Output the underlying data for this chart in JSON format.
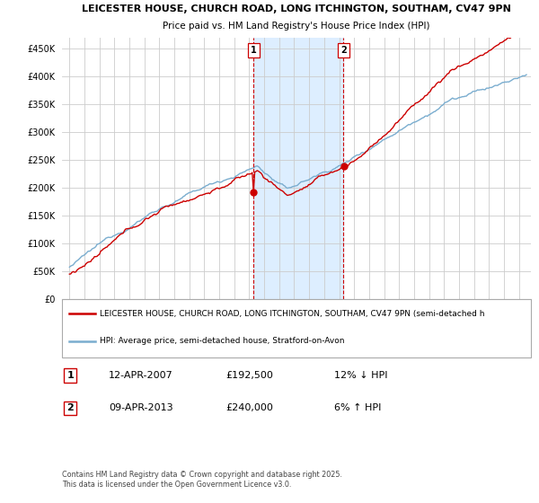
{
  "title1": "LEICESTER HOUSE, CHURCH ROAD, LONG ITCHINGTON, SOUTHAM, CV47 9PN",
  "title2": "Price paid vs. HM Land Registry's House Price Index (HPI)",
  "ylim": [
    0,
    470000
  ],
  "yticks": [
    0,
    50000,
    100000,
    150000,
    200000,
    250000,
    300000,
    350000,
    400000,
    450000
  ],
  "ytick_labels": [
    "£0",
    "£50K",
    "£100K",
    "£150K",
    "£200K",
    "£250K",
    "£300K",
    "£350K",
    "£400K",
    "£450K"
  ],
  "legend_line1": "LEICESTER HOUSE, CHURCH ROAD, LONG ITCHINGTON, SOUTHAM, CV47 9PN (semi-detached h",
  "legend_line2": "HPI: Average price, semi-detached house, Stratford-on-Avon",
  "sale1_label": "1",
  "sale1_date": "12-APR-2007",
  "sale1_price": "£192,500",
  "sale1_hpi": "12% ↓ HPI",
  "sale2_label": "2",
  "sale2_date": "09-APR-2013",
  "sale2_price": "£240,000",
  "sale2_hpi": "6% ↑ HPI",
  "footer": "Contains HM Land Registry data © Crown copyright and database right 2025.\nThis data is licensed under the Open Government Licence v3.0.",
  "red_color": "#cc0000",
  "blue_color": "#7aadcf",
  "shaded_color": "#ddeeff",
  "grid_color": "#cccccc",
  "bg_color": "#ffffff"
}
